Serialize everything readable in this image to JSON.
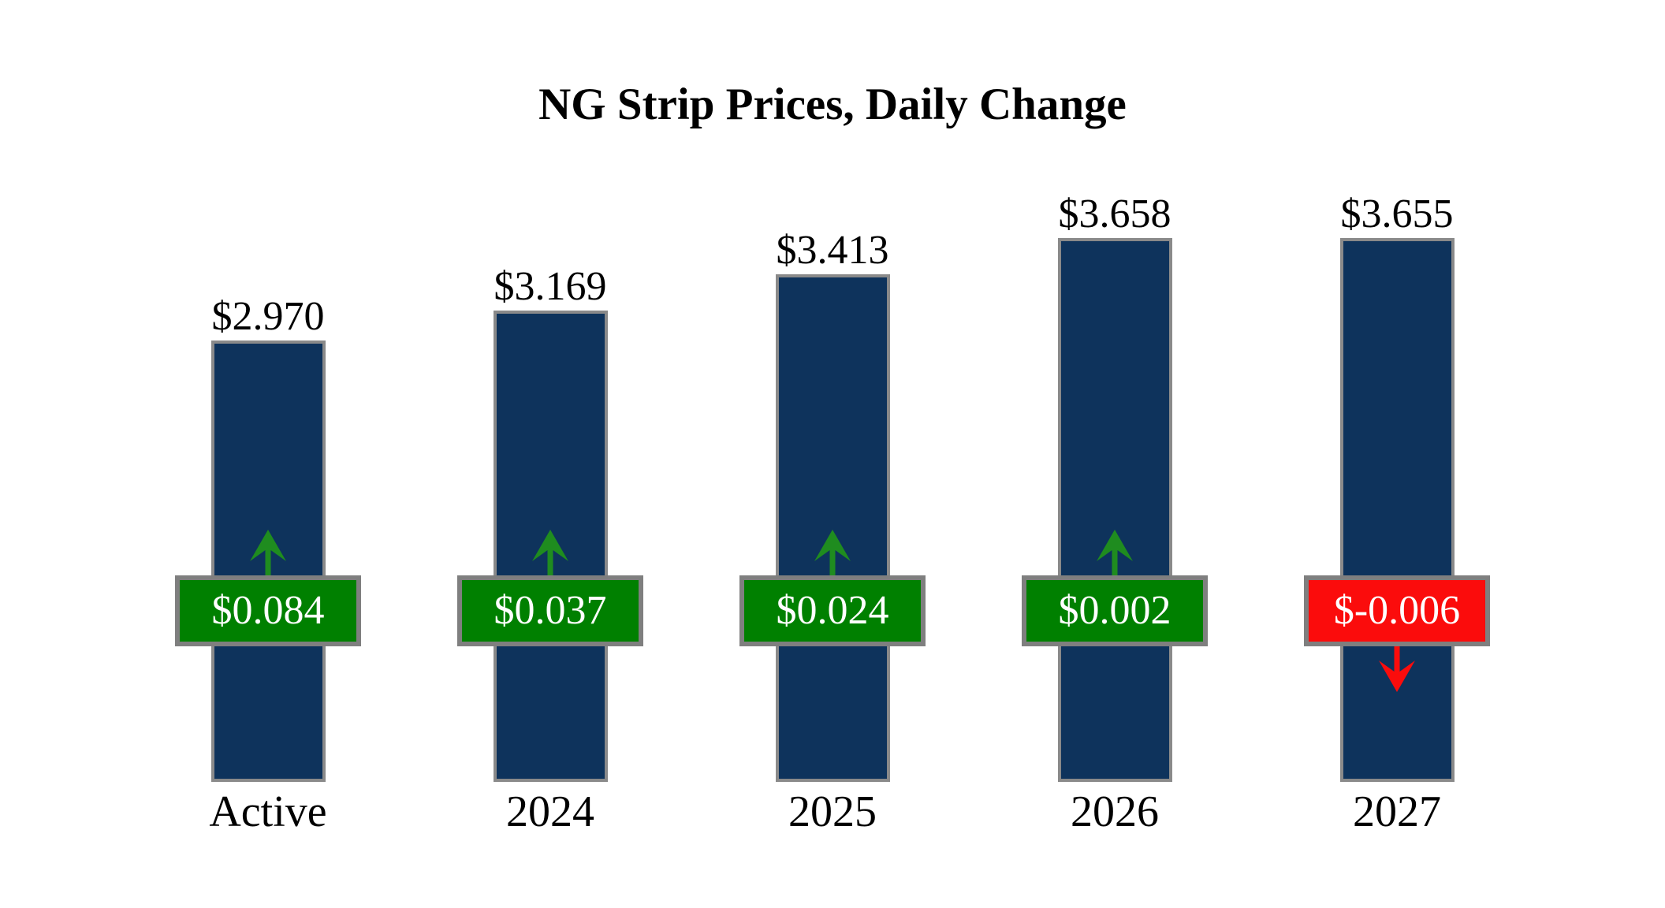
{
  "title": "NG Strip Prices, Daily Change",
  "chart_data": {
    "type": "bar",
    "title": "NG Strip Prices, Daily Change",
    "categories": [
      "Active",
      "2024",
      "2025",
      "2026",
      "2027"
    ],
    "series": [
      {
        "name": "Strip Price",
        "values": [
          2.97,
          3.169,
          3.413,
          3.658,
          3.655
        ]
      },
      {
        "name": "Daily Change",
        "values": [
          0.084,
          0.037,
          0.024,
          0.002,
          -0.006
        ]
      }
    ],
    "price_labels": [
      "$2.970",
      "$3.169",
      "$3.413",
      "$3.658",
      "$3.655"
    ],
    "change_labels": [
      "$0.084",
      "$0.037",
      "$0.024",
      "$0.002",
      "$-0.006"
    ],
    "change_directions": [
      "up",
      "up",
      "up",
      "up",
      "down"
    ],
    "xlabel": "",
    "ylabel": "",
    "ylim": [
      0,
      3.8
    ],
    "grid": false,
    "legend": false,
    "axes_hidden": true
  },
  "colors": {
    "background": "#FFFFFF",
    "bar_fill": "#0E335C",
    "bar_border": "#8A8A8A",
    "badge_up_fill": "#008000",
    "badge_down_fill": "#FB0C0C",
    "badge_border": "#7F7F7F",
    "badge_text": "#FFFFFF",
    "arrow_up": "#1F8C1F",
    "arrow_down": "#FB0C0C",
    "label_text": "#000000"
  }
}
